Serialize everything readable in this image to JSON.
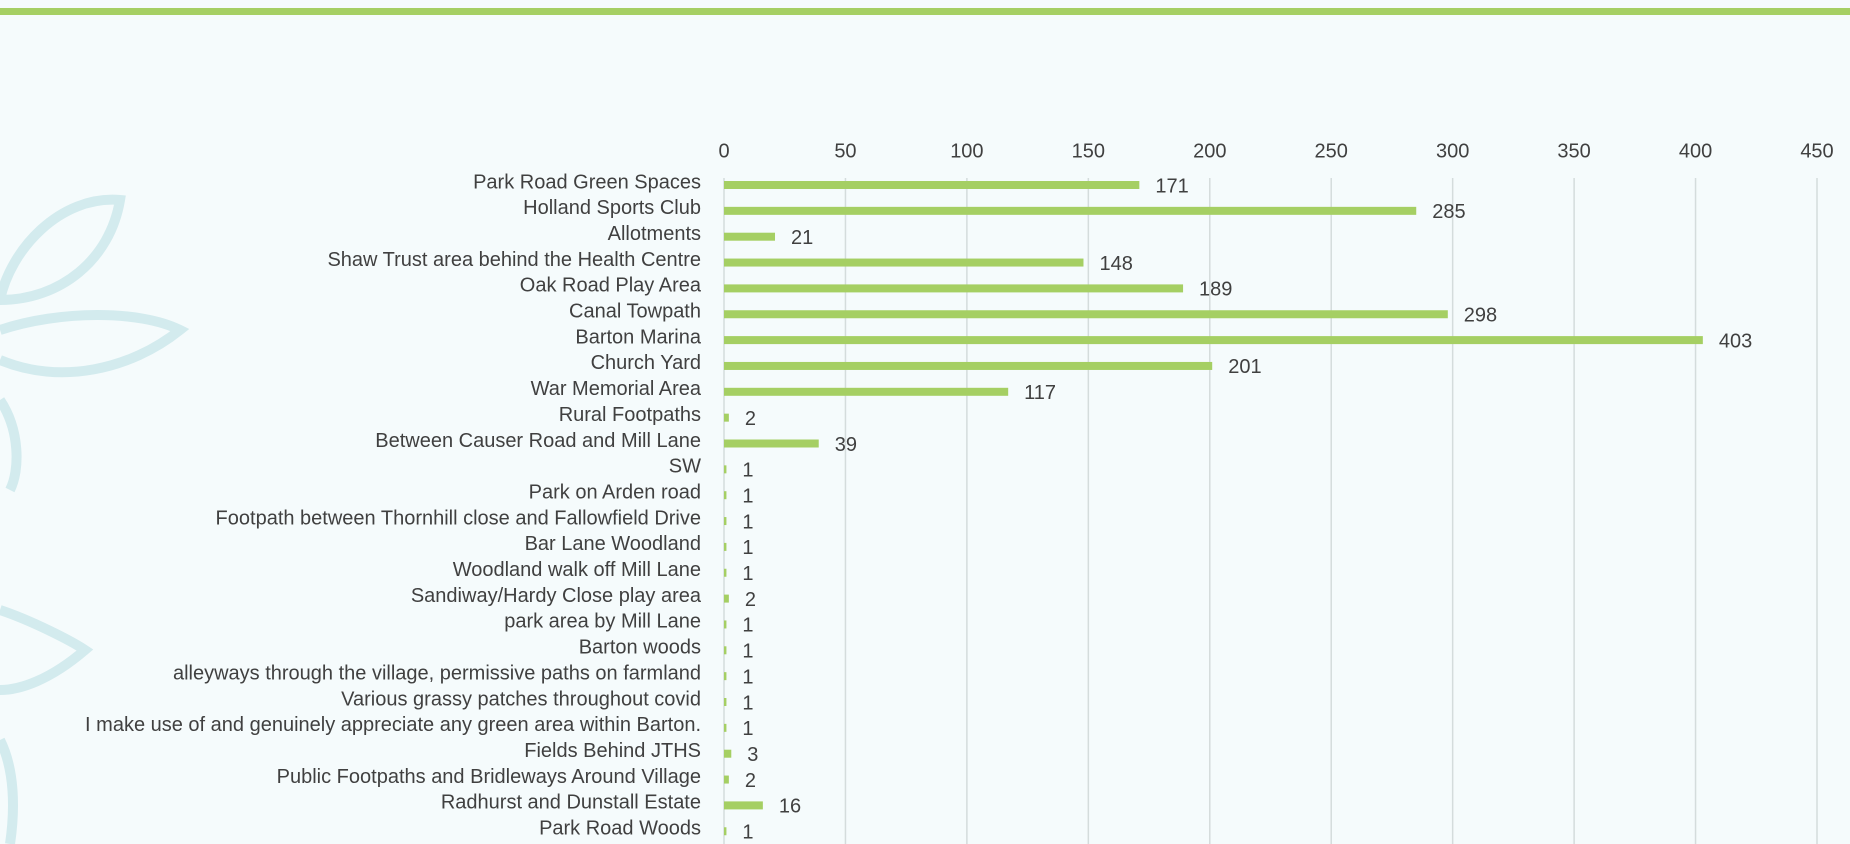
{
  "chart_data": {
    "type": "bar",
    "orientation": "horizontal",
    "categories": [
      "Park Road Green Spaces",
      "Holland Sports Club",
      "Allotments",
      "Shaw Trust area behind the Health Centre",
      "Oak Road Play Area",
      "Canal Towpath",
      "Barton Marina",
      "Church Yard",
      "War Memorial Area",
      "Rural Footpaths",
      "Between Causer Road and Mill Lane",
      "SW",
      "Park on Arden road",
      "Footpath between Thornhill close and Fallowfield Drive ",
      "Bar Lane Woodland",
      "Woodland walk off Mill Lane",
      "Sandiway/Hardy Close play area",
      "park area by Mill Lane",
      "Barton woods",
      "alleyways through the village, permissive paths on farmland",
      "Various grassy patches throughout covid",
      "I make use of and genuinely appreciate any green area within Barton. ",
      "Fields Behind JTHS",
      "Public Footpaths and Bridleways Around Village",
      "Radhurst and Dunstall Estate",
      "Park Road Woods"
    ],
    "values": [
      171,
      285,
      21,
      148,
      189,
      298,
      403,
      201,
      117,
      2,
      39,
      1,
      1,
      1,
      1,
      1,
      2,
      1,
      1,
      1,
      1,
      1,
      3,
      2,
      16,
      1
    ],
    "color": "#a5cf63",
    "xlim": [
      0,
      450
    ],
    "xticks": [
      0,
      50,
      100,
      150,
      200,
      250,
      300,
      350,
      400,
      450
    ],
    "grid": true
  }
}
